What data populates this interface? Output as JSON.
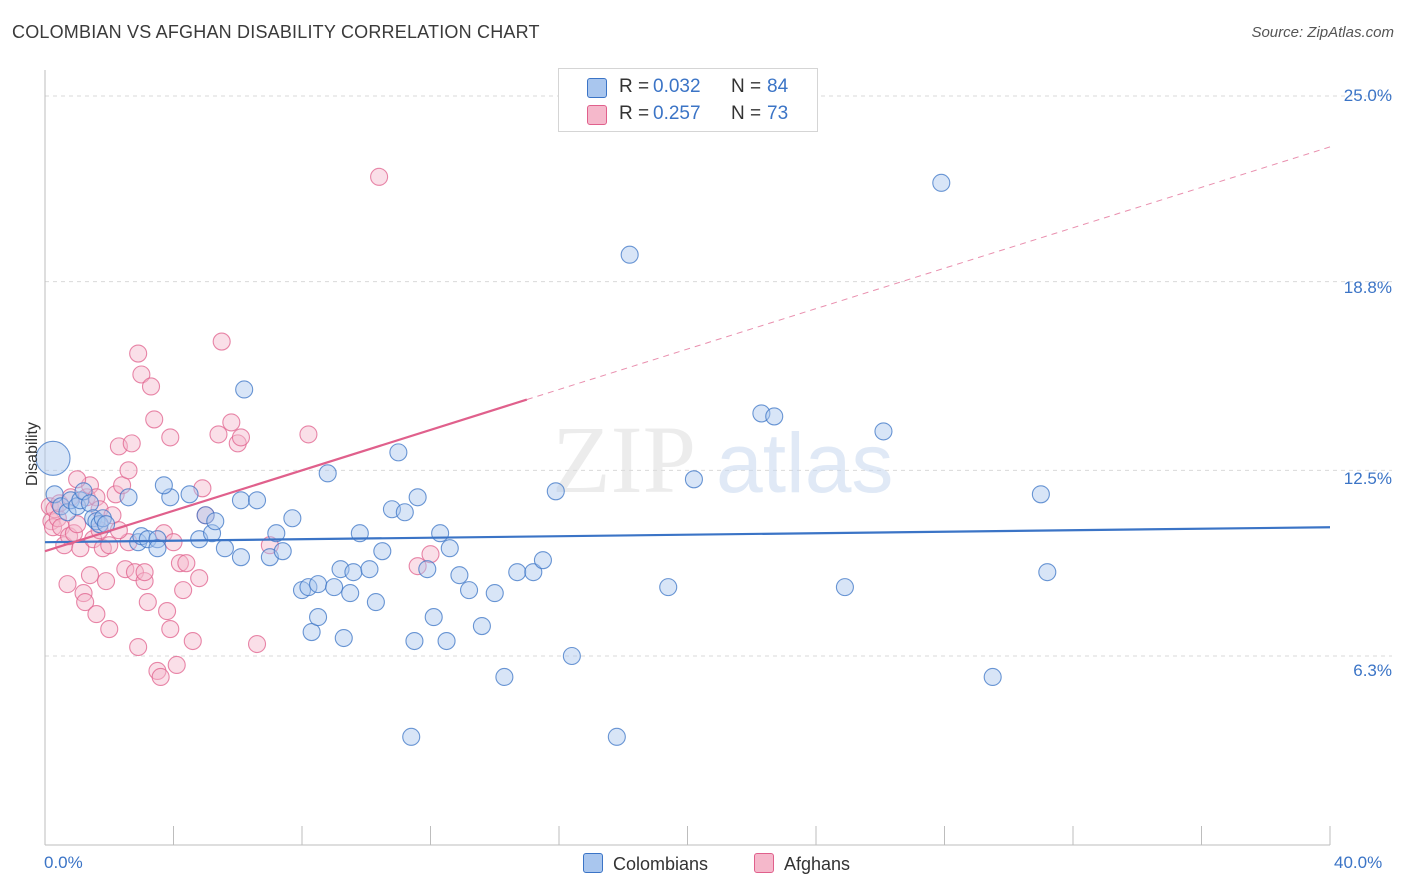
{
  "title": "COLOMBIAN VS AFGHAN DISABILITY CORRELATION CHART",
  "source": "Source: ZipAtlas.com",
  "colors": {
    "blue": "#3b74c6",
    "blue_fill": "#a9c6ee",
    "pink": "#e0608c",
    "pink_fill": "#f5b8cb",
    "grid": "#d9d9d9"
  },
  "legend": {
    "rows": [
      {
        "r_label": "R =",
        "r_value": "0.032",
        "n_label": "N =",
        "n_value": "84"
      },
      {
        "r_label": "R =",
        "r_value": "0.257",
        "n_label": "N =",
        "n_value": "73"
      }
    ]
  },
  "chart_data": {
    "type": "scatter",
    "title": "COLOMBIAN VS AFGHAN DISABILITY CORRELATION CHART",
    "xlabel": "",
    "ylabel": "Disability",
    "xlim": [
      0,
      40
    ],
    "ylim": [
      0,
      26
    ],
    "x_tick_labels": [
      "0.0%",
      "40.0%"
    ],
    "y_ticks": [
      6.3,
      12.5,
      18.8,
      25.0
    ],
    "y_tick_labels": [
      "6.3%",
      "12.5%",
      "18.8%",
      "25.0%"
    ],
    "watermark": {
      "zip": "ZIP",
      "atlas": "atlas"
    },
    "series": [
      {
        "name": "Colombians",
        "r": 0.032,
        "n": 84,
        "trend": {
          "x0": 0,
          "y0": 10.1,
          "x1": 40,
          "y1": 10.6,
          "solid_until": 40
        },
        "points": [
          [
            0.25,
            12.9
          ],
          [
            0.3,
            11.7
          ],
          [
            0.5,
            11.3
          ],
          [
            0.7,
            11.1
          ],
          [
            0.8,
            11.5
          ],
          [
            1.0,
            11.3
          ],
          [
            1.1,
            11.5
          ],
          [
            1.2,
            11.8
          ],
          [
            1.4,
            11.4
          ],
          [
            1.5,
            10.9
          ],
          [
            1.6,
            10.8
          ],
          [
            1.7,
            10.7
          ],
          [
            1.8,
            10.9
          ],
          [
            1.9,
            10.7
          ],
          [
            2.6,
            11.6
          ],
          [
            2.9,
            10.1
          ],
          [
            3.0,
            10.3
          ],
          [
            3.2,
            10.2
          ],
          [
            3.5,
            10.2
          ],
          [
            3.5,
            9.9
          ],
          [
            3.9,
            11.6
          ],
          [
            3.7,
            12.0
          ],
          [
            4.5,
            11.7
          ],
          [
            4.8,
            10.2
          ],
          [
            5.0,
            11.0
          ],
          [
            5.2,
            10.4
          ],
          [
            5.3,
            10.8
          ],
          [
            5.6,
            9.9
          ],
          [
            6.1,
            9.6
          ],
          [
            6.1,
            11.5
          ],
          [
            6.2,
            15.2
          ],
          [
            6.6,
            11.5
          ],
          [
            7.0,
            9.6
          ],
          [
            7.2,
            10.4
          ],
          [
            7.4,
            9.8
          ],
          [
            7.7,
            10.9
          ],
          [
            8.0,
            8.5
          ],
          [
            8.2,
            8.6
          ],
          [
            8.3,
            7.1
          ],
          [
            8.5,
            8.7
          ],
          [
            8.5,
            7.6
          ],
          [
            8.8,
            12.4
          ],
          [
            9.0,
            8.6
          ],
          [
            9.2,
            9.2
          ],
          [
            9.3,
            6.9
          ],
          [
            9.5,
            8.4
          ],
          [
            9.6,
            9.1
          ],
          [
            9.8,
            10.4
          ],
          [
            10.1,
            9.2
          ],
          [
            10.3,
            8.1
          ],
          [
            10.5,
            9.8
          ],
          [
            10.8,
            11.2
          ],
          [
            11.0,
            13.1
          ],
          [
            11.2,
            11.1
          ],
          [
            11.5,
            6.8
          ],
          [
            11.6,
            11.6
          ],
          [
            11.9,
            9.2
          ],
          [
            12.1,
            7.6
          ],
          [
            12.3,
            10.4
          ],
          [
            12.5,
            6.8
          ],
          [
            12.6,
            9.9
          ],
          [
            12.9,
            9.0
          ],
          [
            13.2,
            8.5
          ],
          [
            13.6,
            7.3
          ],
          [
            14.0,
            8.4
          ],
          [
            14.3,
            5.6
          ],
          [
            14.7,
            9.1
          ],
          [
            15.2,
            9.1
          ],
          [
            15.5,
            9.5
          ],
          [
            15.9,
            11.8
          ],
          [
            16.4,
            6.3
          ],
          [
            17.8,
            3.6
          ],
          [
            11.4,
            3.6
          ],
          [
            18.2,
            19.7
          ],
          [
            19.4,
            8.6
          ],
          [
            20.2,
            12.2
          ],
          [
            22.3,
            14.4
          ],
          [
            22.7,
            14.3
          ],
          [
            24.9,
            8.6
          ],
          [
            26.1,
            13.8
          ],
          [
            27.9,
            22.1
          ],
          [
            29.5,
            5.6
          ],
          [
            31.0,
            11.7
          ],
          [
            31.2,
            9.1
          ]
        ]
      },
      {
        "name": "Afghans",
        "r": 0.257,
        "n": 73,
        "trend": {
          "x0": 0,
          "y0": 9.8,
          "x1": 40,
          "y1": 23.3,
          "solid_until": 15.0
        },
        "points": [
          [
            0.15,
            11.3
          ],
          [
            0.2,
            10.8
          ],
          [
            0.25,
            10.6
          ],
          [
            0.3,
            11.2
          ],
          [
            0.4,
            10.9
          ],
          [
            0.45,
            11.4
          ],
          [
            0.5,
            10.6
          ],
          [
            0.6,
            10.0
          ],
          [
            0.7,
            8.7
          ],
          [
            0.75,
            10.3
          ],
          [
            0.8,
            11.6
          ],
          [
            0.9,
            10.4
          ],
          [
            1.0,
            10.7
          ],
          [
            1.1,
            9.9
          ],
          [
            1.2,
            8.4
          ],
          [
            1.25,
            8.1
          ],
          [
            1.3,
            11.6
          ],
          [
            1.4,
            12.0
          ],
          [
            1.4,
            9.0
          ],
          [
            1.5,
            10.2
          ],
          [
            1.6,
            11.6
          ],
          [
            1.7,
            11.2
          ],
          [
            1.7,
            10.5
          ],
          [
            1.8,
            9.9
          ],
          [
            1.9,
            8.8
          ],
          [
            2.0,
            7.2
          ],
          [
            2.0,
            10.0
          ],
          [
            2.1,
            11.0
          ],
          [
            2.2,
            11.7
          ],
          [
            2.3,
            13.3
          ],
          [
            2.4,
            12.0
          ],
          [
            2.5,
            9.2
          ],
          [
            2.6,
            12.5
          ],
          [
            2.6,
            10.1
          ],
          [
            2.7,
            13.4
          ],
          [
            2.8,
            9.1
          ],
          [
            2.9,
            16.4
          ],
          [
            3.0,
            15.7
          ],
          [
            3.1,
            8.8
          ],
          [
            3.1,
            9.1
          ],
          [
            3.2,
            8.1
          ],
          [
            3.3,
            15.3
          ],
          [
            3.4,
            14.2
          ],
          [
            3.5,
            5.8
          ],
          [
            3.6,
            5.6
          ],
          [
            3.7,
            10.4
          ],
          [
            3.8,
            7.8
          ],
          [
            3.9,
            13.6
          ],
          [
            3.9,
            7.2
          ],
          [
            4.0,
            10.1
          ],
          [
            4.1,
            6.0
          ],
          [
            4.2,
            9.4
          ],
          [
            4.3,
            8.5
          ],
          [
            4.4,
            9.4
          ],
          [
            4.6,
            6.8
          ],
          [
            4.8,
            8.9
          ],
          [
            4.9,
            11.9
          ],
          [
            5.0,
            11.0
          ],
          [
            5.4,
            13.7
          ],
          [
            5.5,
            16.8
          ],
          [
            5.8,
            14.1
          ],
          [
            6.0,
            13.4
          ],
          [
            6.1,
            13.6
          ],
          [
            6.6,
            6.7
          ],
          [
            7.0,
            10.0
          ],
          [
            8.2,
            13.7
          ],
          [
            10.4,
            22.3
          ],
          [
            11.6,
            9.3
          ],
          [
            12.0,
            9.7
          ],
          [
            2.3,
            10.5
          ],
          [
            1.0,
            12.2
          ],
          [
            1.6,
            7.7
          ],
          [
            2.9,
            6.6
          ]
        ]
      }
    ]
  },
  "bottom_legend": {
    "items": [
      {
        "label": "Colombians"
      },
      {
        "label": "Afghans"
      }
    ]
  }
}
